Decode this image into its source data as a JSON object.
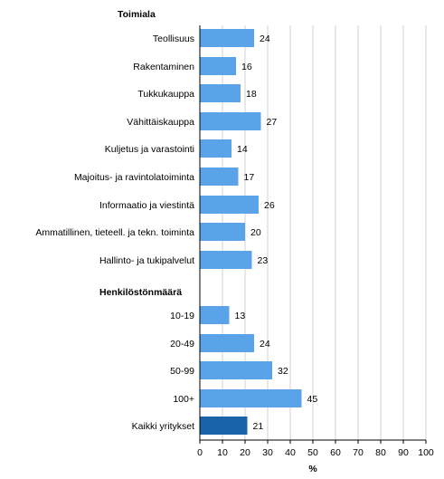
{
  "chart_data": {
    "type": "bar",
    "orientation": "horizontal",
    "groups": [
      {
        "title": "Toimiala",
        "items": [
          {
            "label": "Teollisuus",
            "value": 24
          },
          {
            "label": "Rakentaminen",
            "value": 16
          },
          {
            "label": "Tukkukauppa",
            "value": 18
          },
          {
            "label": "Vähittäiskauppa",
            "value": 27
          },
          {
            "label": "Kuljetus ja varastointi",
            "value": 14
          },
          {
            "label": "Majoitus- ja ravintolatoiminta",
            "value": 17
          },
          {
            "label": "Informaatio ja viestintä",
            "value": 26
          },
          {
            "label": "Ammatillinen, tieteell. ja tekn. toiminta",
            "value": 20
          },
          {
            "label": "Hallinto- ja tukipalvelut",
            "value": 23
          }
        ]
      },
      {
        "title": "Henkilöstönmäärä",
        "items": [
          {
            "label": "10-19",
            "value": 13
          },
          {
            "label": "20-49",
            "value": 24
          },
          {
            "label": "50-99",
            "value": 32
          },
          {
            "label": "100+",
            "value": 45
          }
        ]
      }
    ],
    "total": {
      "label": "Kaikki yritykset",
      "value": 21
    },
    "xlabel": "%",
    "xlim": [
      0,
      100
    ],
    "xticks": [
      0,
      10,
      20,
      30,
      40,
      50,
      60,
      70,
      80,
      90,
      100
    ],
    "grid": "vertical",
    "legend": "none",
    "colors": {
      "bar": "#5ba3e8",
      "total_bar": "#1a63ab",
      "grid": "#d0d0d0",
      "axis": "#000000"
    }
  }
}
